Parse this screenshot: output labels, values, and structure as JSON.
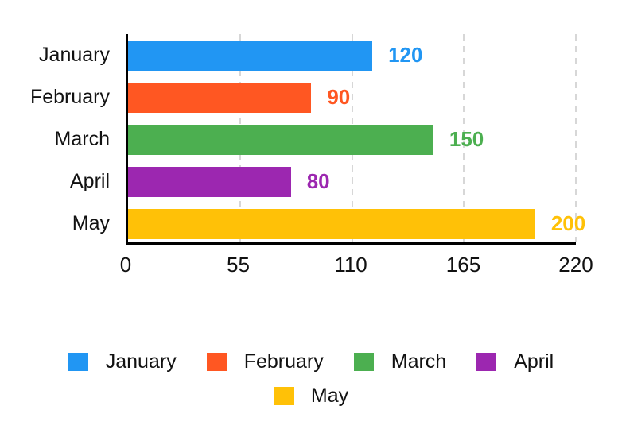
{
  "chart_data": {
    "type": "bar",
    "orientation": "horizontal",
    "title": "",
    "xlabel": "",
    "ylabel": "",
    "categories": [
      "January",
      "February",
      "March",
      "April",
      "May"
    ],
    "values": [
      120,
      90,
      150,
      80,
      200
    ],
    "colors": [
      "#2196F3",
      "#FF5722",
      "#4CAF50",
      "#9C27B0",
      "#FFC107"
    ],
    "value_labels": [
      "120",
      "90",
      "150",
      "80",
      "200"
    ],
    "xlim": [
      0,
      220
    ],
    "xticks": [
      0,
      55,
      110,
      165,
      220
    ],
    "grid": "vertical-dashed",
    "gridline_color": "#d7d7d7",
    "axis_color": "#000000",
    "legend_position": "bottom",
    "legend": [
      {
        "label": "January",
        "color": "#2196F3"
      },
      {
        "label": "February",
        "color": "#FF5722"
      },
      {
        "label": "March",
        "color": "#4CAF50"
      },
      {
        "label": "April",
        "color": "#9C27B0"
      },
      {
        "label": "May",
        "color": "#FFC107"
      }
    ]
  }
}
